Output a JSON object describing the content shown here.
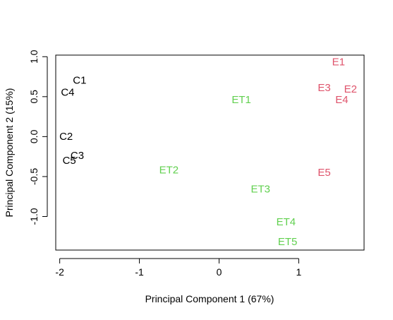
{
  "chart_data": {
    "type": "scatter",
    "title": "",
    "xlabel": "Principal Component 1 (67%)",
    "ylabel": "Principal Component 2 (15%)",
    "xlim": [
      -2.05,
      1.82
    ],
    "ylim": [
      -1.42,
      1.02
    ],
    "x_ticks": [
      -2,
      -1,
      0,
      1
    ],
    "x_tick_labels": [
      "-2",
      "-1",
      "0",
      "1"
    ],
    "y_ticks": [
      -1.0,
      -0.5,
      0.0,
      0.5,
      1.0
    ],
    "y_tick_labels": [
      "-1.0",
      "-0.5",
      "0.0",
      "0.5",
      "1.0"
    ],
    "grid": false,
    "legend": "none",
    "colors": {
      "control": "#000000",
      "et": "#61D04F",
      "e": "#DF536B"
    },
    "points": [
      {
        "label": "C1",
        "x": -1.75,
        "y": 0.7,
        "group": "control"
      },
      {
        "label": "C4",
        "x": -1.9,
        "y": 0.55,
        "group": "control"
      },
      {
        "label": "C2",
        "x": -1.92,
        "y": 0.0,
        "group": "control"
      },
      {
        "label": "C3",
        "x": -1.78,
        "y": -0.24,
        "group": "control"
      },
      {
        "label": "C5",
        "x": -1.88,
        "y": -0.3,
        "group": "control"
      },
      {
        "label": "ET1",
        "x": 0.28,
        "y": 0.46,
        "group": "et"
      },
      {
        "label": "ET2",
        "x": -0.63,
        "y": -0.42,
        "group": "et"
      },
      {
        "label": "ET3",
        "x": 0.52,
        "y": -0.66,
        "group": "et"
      },
      {
        "label": "ET4",
        "x": 0.84,
        "y": -1.07,
        "group": "et"
      },
      {
        "label": "ET5",
        "x": 0.86,
        "y": -1.32,
        "group": "et"
      },
      {
        "label": "E1",
        "x": 1.5,
        "y": 0.93,
        "group": "e"
      },
      {
        "label": "E3",
        "x": 1.32,
        "y": 0.61,
        "group": "e"
      },
      {
        "label": "E2",
        "x": 1.65,
        "y": 0.59,
        "group": "e"
      },
      {
        "label": "E4",
        "x": 1.54,
        "y": 0.46,
        "group": "e"
      },
      {
        "label": "E5",
        "x": 1.32,
        "y": -0.45,
        "group": "e"
      }
    ]
  }
}
